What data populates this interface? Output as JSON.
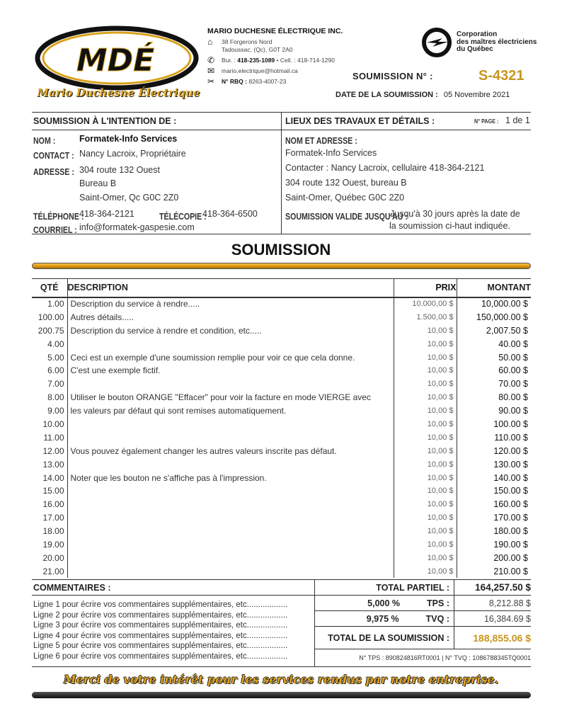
{
  "header": {
    "logo_text": "MDÉ",
    "logo_subtitle": "Mario Duchesne Électrique",
    "company_name": "MARIO DUCHESNE ÉLECTRIQUE INC.",
    "address_line1": "38 Forgerons Nord",
    "address_line2": "Tadoussac, (Qc), G0T 2A0",
    "office_label": "Bur. :",
    "office_phone": "418-235-1089",
    "cell_label": "• Cell. :",
    "cell_phone": "418-714-1290",
    "email": "mario.electrique@hotmail.ca",
    "rbq_label": "N° RBQ :",
    "rbq": "8263-4007-23",
    "cmeq_lines": [
      "Corporation",
      "des maîtres électriciens",
      "du Québec"
    ],
    "quote_number_label": "SOUMISSION N° :",
    "quote_number": "S-4321",
    "quote_date_label": "DATE DE LA SOUMISSION :",
    "quote_date": "05 Novembre 2021",
    "accent_color": "#c8961e"
  },
  "client": {
    "heading": "SOUMISSION À L'INTENTION DE :",
    "name_label": "NOM :",
    "name": "Formatek-Info Services",
    "contact_label": "CONTACT :",
    "contact": "Nancy Lacroix, Propriétaire",
    "address_label": "ADRESSE :",
    "address": [
      "304 route 132 Ouest",
      "Bureau B",
      "Saint-Omer, Qc  G0C 2Z0"
    ],
    "phone_label": "TÉLÉPHONE :",
    "phone": "418-364-2121",
    "fax_label": "TÉLÉCOPIE :",
    "fax": "418-364-6500",
    "email_label": "COURRIEL :",
    "email": "info@formatek-gaspesie.com"
  },
  "site": {
    "heading": "LIEUX DES TRAVAUX ET DÉTAILS :",
    "page_label": "N° PAGE :",
    "page": "1 de 1",
    "name_address_label": "NOM ET ADRESSE :",
    "lines": [
      "Formatek-Info Services",
      "Contacter : Nancy Lacroix, cellulaire 418-364-2121",
      "304 route 132 Ouest, bureau B",
      "Saint-Omer, Québec  G0C 2Z0"
    ],
    "valid_label": "SOUMISSION VALIDE JUSQU'AU :",
    "valid_line1": "Jusqu'à 30 jours après la date de",
    "valid_line2": "la soumission ci-haut indiquée."
  },
  "title": "SOUMISSION",
  "table": {
    "headers": {
      "qty": "QTÉ",
      "description": "DESCRIPTION",
      "price": "PRIX",
      "amount": "MONTANT"
    },
    "rows": [
      {
        "qty": "1.00",
        "description": "Description du service à rendre.....",
        "price": "10.000,00 $",
        "amount": "10,000.00 $"
      },
      {
        "qty": "100.00",
        "description": "Autres détails.....",
        "price": "1.500,00 $",
        "amount": "150,000.00 $"
      },
      {
        "qty": "200.75",
        "description": "Description du service à rendre et condition, etc.....",
        "price": "10,00 $",
        "amount": "2,007.50 $"
      },
      {
        "qty": "4.00",
        "description": "",
        "price": "10,00 $",
        "amount": "40.00 $"
      },
      {
        "qty": "5.00",
        "description": "Ceci est un exemple d'une soumission remplie pour voir ce que cela donne.",
        "price": "10,00 $",
        "amount": "50.00 $"
      },
      {
        "qty": "6.00",
        "description": "C'est une exemple fictif.",
        "price": "10,00 $",
        "amount": "60.00 $"
      },
      {
        "qty": "7.00",
        "description": "",
        "price": "10,00 $",
        "amount": "70.00 $"
      },
      {
        "qty": "8.00",
        "description": "Utiliser le bouton ORANGE \"Effacer\" pour voir la facture en mode VIERGE avec",
        "price": "10,00 $",
        "amount": "80.00 $"
      },
      {
        "qty": "9.00",
        "description": "les valeurs par défaut qui sont remises automatiquement.",
        "price": "10,00 $",
        "amount": "90.00 $"
      },
      {
        "qty": "10.00",
        "description": "",
        "price": "10,00 $",
        "amount": "100.00 $"
      },
      {
        "qty": "11.00",
        "description": "",
        "price": "10,00 $",
        "amount": "110.00 $"
      },
      {
        "qty": "12.00",
        "description": "Vous pouvez également changer les autres valeurs inscrite pas défaut.",
        "price": "10,00 $",
        "amount": "120.00 $"
      },
      {
        "qty": "13.00",
        "description": "",
        "price": "10,00 $",
        "amount": "130.00 $"
      },
      {
        "qty": "14.00",
        "description": "Noter que les bouton ne s'affiche pas à l'impression.",
        "price": "10,00 $",
        "amount": "140.00 $"
      },
      {
        "qty": "15.00",
        "description": "",
        "price": "10,00 $",
        "amount": "150.00 $"
      },
      {
        "qty": "16.00",
        "description": "",
        "price": "10,00 $",
        "amount": "160.00 $"
      },
      {
        "qty": "17.00",
        "description": "",
        "price": "10,00 $",
        "amount": "170.00 $"
      },
      {
        "qty": "18.00",
        "description": "",
        "price": "10,00 $",
        "amount": "180.00 $"
      },
      {
        "qty": "19.00",
        "description": "",
        "price": "10,00 $",
        "amount": "190.00 $"
      },
      {
        "qty": "20.00",
        "description": "",
        "price": "10,00 $",
        "amount": "200.00 $"
      },
      {
        "qty": "21.00",
        "description": "",
        "price": "10,00 $",
        "amount": "210.00 $"
      }
    ]
  },
  "comments": {
    "heading": "COMMENTAIRES :",
    "lines": [
      "Ligne 1 pour écrire vos commentaires supplémentaires, etc..................",
      "Ligne 2 pour écrire vos commentaires supplémentaires, etc..................",
      "Ligne 3 pour écrire vos commentaires supplémentaires, etc..................",
      "Ligne 4 pour écrire vos commentaires supplémentaires, etc..................",
      "Ligne 5 pour écrire vos commentaires supplémentaires, etc..................",
      "Ligne 6 pour écrire vos commentaires supplémentaires, etc.................."
    ]
  },
  "totals": {
    "subtotal_label": "TOTAL PARTIEL :",
    "subtotal": "164,257.50 $",
    "tps_rate": "5,000  %",
    "tps_label": "TPS :",
    "tps": "8,212.88 $",
    "tvq_rate": "9,975  %",
    "tvq_label": "TVQ :",
    "tvq": "16,384.69 $",
    "total_label": "TOTAL DE LA SOUMISSION :",
    "total": "188,855.06 $",
    "registration": "N° TPS : 890824816RT0001  |  N° TVQ : 1086788345TQ0001"
  },
  "footer": {
    "slogan": "Merci de votre intérêt pour les services rendus par notre entreprise."
  }
}
